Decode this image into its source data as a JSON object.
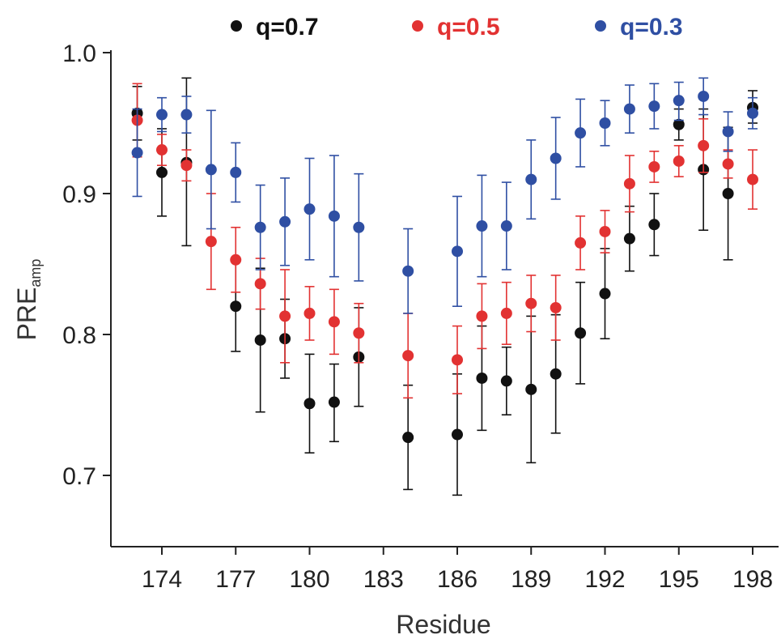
{
  "chart_data": {
    "type": "scatter",
    "xlabel": "Residue",
    "ylabel_main": "PRE",
    "ylabel_sub": "amp",
    "xlim": [
      172,
      198.9
    ],
    "ylim": [
      0.65,
      1.0
    ],
    "xticks": [
      174,
      177,
      180,
      183,
      186,
      189,
      192,
      195,
      198
    ],
    "yticks": [
      0.7,
      0.8,
      0.9,
      1.0
    ],
    "ytick_labels": [
      "0.7",
      "0.8",
      "0.9",
      "1.0"
    ],
    "legend_position": "top",
    "series": [
      {
        "name": "q=0.7",
        "color": "#111111",
        "points": [
          {
            "x": 173,
            "y": 0.957,
            "lo": 0.938,
            "hi": 0.976
          },
          {
            "x": 174,
            "y": 0.915,
            "lo": 0.884,
            "hi": 0.946
          },
          {
            "x": 175,
            "y": 0.922,
            "lo": 0.863,
            "hi": 0.982
          },
          {
            "x": 177,
            "y": 0.82,
            "lo": 0.788,
            "hi": 0.852
          },
          {
            "x": 178,
            "y": 0.796,
            "lo": 0.745,
            "hi": 0.847
          },
          {
            "x": 179,
            "y": 0.797,
            "lo": 0.769,
            "hi": 0.825
          },
          {
            "x": 180,
            "y": 0.751,
            "lo": 0.716,
            "hi": 0.786
          },
          {
            "x": 181,
            "y": 0.752,
            "lo": 0.724,
            "hi": 0.779
          },
          {
            "x": 182,
            "y": 0.784,
            "lo": 0.749,
            "hi": 0.819
          },
          {
            "x": 184,
            "y": 0.727,
            "lo": 0.69,
            "hi": 0.764
          },
          {
            "x": 186,
            "y": 0.729,
            "lo": 0.686,
            "hi": 0.772
          },
          {
            "x": 187,
            "y": 0.769,
            "lo": 0.732,
            "hi": 0.806
          },
          {
            "x": 188,
            "y": 0.767,
            "lo": 0.743,
            "hi": 0.791
          },
          {
            "x": 189,
            "y": 0.761,
            "lo": 0.709,
            "hi": 0.813
          },
          {
            "x": 190,
            "y": 0.772,
            "lo": 0.73,
            "hi": 0.814
          },
          {
            "x": 191,
            "y": 0.801,
            "lo": 0.765,
            "hi": 0.837
          },
          {
            "x": 192,
            "y": 0.829,
            "lo": 0.797,
            "hi": 0.861
          },
          {
            "x": 193,
            "y": 0.868,
            "lo": 0.845,
            "hi": 0.891
          },
          {
            "x": 194,
            "y": 0.878,
            "lo": 0.856,
            "hi": 0.9
          },
          {
            "x": 195,
            "y": 0.949,
            "lo": 0.938,
            "hi": 0.96
          },
          {
            "x": 196,
            "y": 0.917,
            "lo": 0.874,
            "hi": 0.96
          },
          {
            "x": 197,
            "y": 0.9,
            "lo": 0.853,
            "hi": 0.947
          },
          {
            "x": 198,
            "y": 0.961,
            "lo": 0.95,
            "hi": 0.973
          }
        ]
      },
      {
        "name": "q=0.5",
        "color": "#e23232",
        "points": [
          {
            "x": 173,
            "y": 0.952,
            "lo": 0.926,
            "hi": 0.978
          },
          {
            "x": 174,
            "y": 0.931,
            "lo": 0.92,
            "hi": 0.942
          },
          {
            "x": 175,
            "y": 0.92,
            "lo": 0.909,
            "hi": 0.931
          },
          {
            "x": 176,
            "y": 0.866,
            "lo": 0.832,
            "hi": 0.9
          },
          {
            "x": 177,
            "y": 0.853,
            "lo": 0.83,
            "hi": 0.876
          },
          {
            "x": 178,
            "y": 0.836,
            "lo": 0.818,
            "hi": 0.854
          },
          {
            "x": 179,
            "y": 0.813,
            "lo": 0.78,
            "hi": 0.846
          },
          {
            "x": 180,
            "y": 0.815,
            "lo": 0.796,
            "hi": 0.834
          },
          {
            "x": 181,
            "y": 0.809,
            "lo": 0.786,
            "hi": 0.832
          },
          {
            "x": 182,
            "y": 0.801,
            "lo": 0.78,
            "hi": 0.822
          },
          {
            "x": 184,
            "y": 0.785,
            "lo": 0.755,
            "hi": 0.815
          },
          {
            "x": 186,
            "y": 0.782,
            "lo": 0.758,
            "hi": 0.806
          },
          {
            "x": 187,
            "y": 0.813,
            "lo": 0.79,
            "hi": 0.836
          },
          {
            "x": 188,
            "y": 0.815,
            "lo": 0.793,
            "hi": 0.837
          },
          {
            "x": 189,
            "y": 0.822,
            "lo": 0.802,
            "hi": 0.842
          },
          {
            "x": 190,
            "y": 0.819,
            "lo": 0.796,
            "hi": 0.842
          },
          {
            "x": 191,
            "y": 0.865,
            "lo": 0.846,
            "hi": 0.884
          },
          {
            "x": 192,
            "y": 0.873,
            "lo": 0.858,
            "hi": 0.888
          },
          {
            "x": 193,
            "y": 0.907,
            "lo": 0.887,
            "hi": 0.927
          },
          {
            "x": 194,
            "y": 0.919,
            "lo": 0.908,
            "hi": 0.93
          },
          {
            "x": 195,
            "y": 0.923,
            "lo": 0.912,
            "hi": 0.934
          },
          {
            "x": 196,
            "y": 0.934,
            "lo": 0.915,
            "hi": 0.953
          },
          {
            "x": 197,
            "y": 0.921,
            "lo": 0.911,
            "hi": 0.931
          },
          {
            "x": 198,
            "y": 0.91,
            "lo": 0.889,
            "hi": 0.931
          }
        ]
      },
      {
        "name": "q=0.3",
        "color": "#2f4fa3",
        "points": [
          {
            "x": 173,
            "y": 0.929,
            "lo": 0.898,
            "hi": 0.96
          },
          {
            "x": 174,
            "y": 0.956,
            "lo": 0.944,
            "hi": 0.968
          },
          {
            "x": 175,
            "y": 0.956,
            "lo": 0.943,
            "hi": 0.969
          },
          {
            "x": 176,
            "y": 0.917,
            "lo": 0.875,
            "hi": 0.959
          },
          {
            "x": 177,
            "y": 0.915,
            "lo": 0.894,
            "hi": 0.936
          },
          {
            "x": 178,
            "y": 0.876,
            "lo": 0.846,
            "hi": 0.906
          },
          {
            "x": 179,
            "y": 0.88,
            "lo": 0.849,
            "hi": 0.911
          },
          {
            "x": 180,
            "y": 0.889,
            "lo": 0.853,
            "hi": 0.925
          },
          {
            "x": 181,
            "y": 0.884,
            "lo": 0.841,
            "hi": 0.927
          },
          {
            "x": 182,
            "y": 0.876,
            "lo": 0.838,
            "hi": 0.914
          },
          {
            "x": 184,
            "y": 0.845,
            "lo": 0.815,
            "hi": 0.875
          },
          {
            "x": 186,
            "y": 0.859,
            "lo": 0.82,
            "hi": 0.898
          },
          {
            "x": 187,
            "y": 0.877,
            "lo": 0.841,
            "hi": 0.913
          },
          {
            "x": 188,
            "y": 0.877,
            "lo": 0.846,
            "hi": 0.908
          },
          {
            "x": 189,
            "y": 0.91,
            "lo": 0.882,
            "hi": 0.938
          },
          {
            "x": 190,
            "y": 0.925,
            "lo": 0.896,
            "hi": 0.954
          },
          {
            "x": 191,
            "y": 0.943,
            "lo": 0.919,
            "hi": 0.967
          },
          {
            "x": 192,
            "y": 0.95,
            "lo": 0.934,
            "hi": 0.966
          },
          {
            "x": 193,
            "y": 0.96,
            "lo": 0.943,
            "hi": 0.977
          },
          {
            "x": 194,
            "y": 0.962,
            "lo": 0.946,
            "hi": 0.978
          },
          {
            "x": 195,
            "y": 0.966,
            "lo": 0.952,
            "hi": 0.979
          },
          {
            "x": 196,
            "y": 0.969,
            "lo": 0.956,
            "hi": 0.982
          },
          {
            "x": 197,
            "y": 0.944,
            "lo": 0.93,
            "hi": 0.958
          },
          {
            "x": 198,
            "y": 0.957,
            "lo": 0.946,
            "hi": 0.968
          }
        ]
      }
    ]
  }
}
